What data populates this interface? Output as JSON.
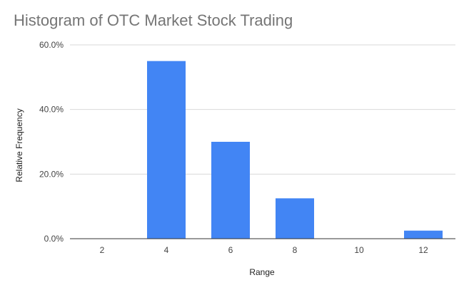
{
  "chart_data": {
    "type": "bar",
    "title": "Histogram of OTC Market Stock Trading",
    "xlabel": "Range",
    "ylabel": "Relative Frequency",
    "categories": [
      "2",
      "4",
      "6",
      "8",
      "10",
      "12"
    ],
    "values": [
      0.0,
      55.0,
      30.0,
      12.5,
      0.0,
      2.5
    ],
    "value_unit": "%",
    "ylim": [
      0,
      60
    ],
    "yticks": [
      0,
      20,
      40,
      60
    ],
    "ytick_labels": [
      "0.0%",
      "20.0%",
      "40.0%",
      "60.0%"
    ],
    "grid": true,
    "legend": "none",
    "bar_color": "#4285f4"
  }
}
